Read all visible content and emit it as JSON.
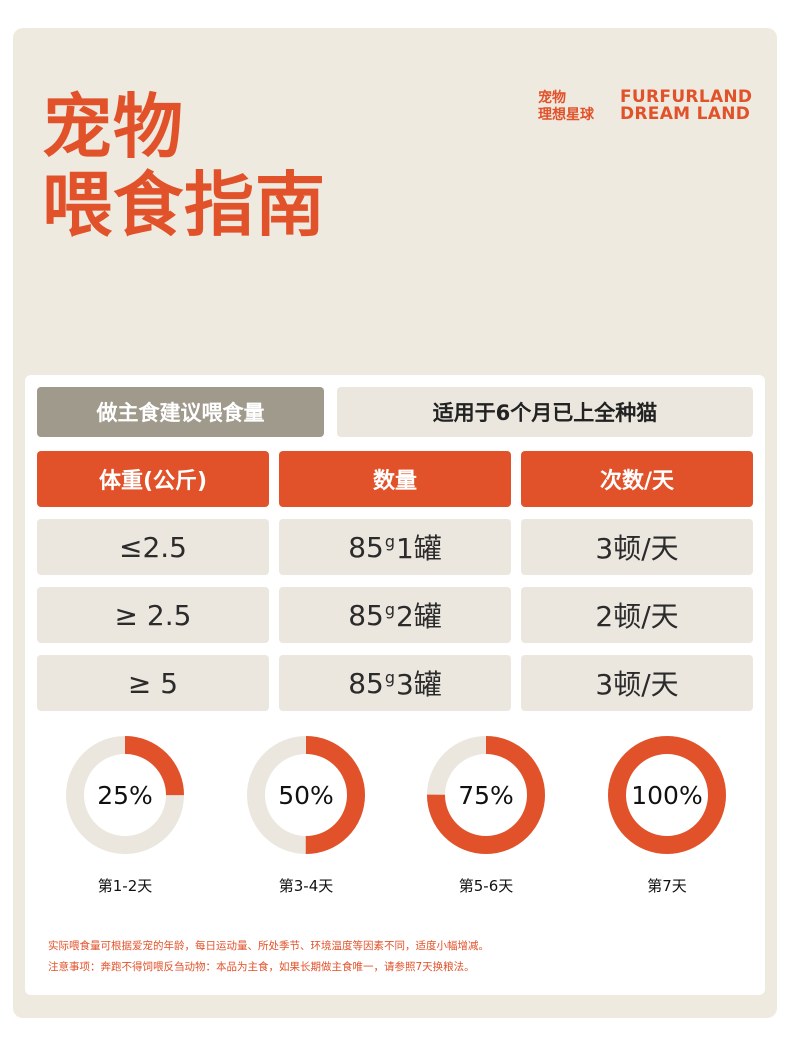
{
  "title": {
    "line1": "宠物",
    "line2": "喂食指南"
  },
  "brand": {
    "cn_line1": "宠物",
    "cn_line2": "理想星球",
    "en_line1": "FURFURLAND",
    "en_line2": "DREAM LAND"
  },
  "tags": {
    "left": "做主食建议喂食量",
    "right": "适用于6个月已上全种猫"
  },
  "table": {
    "headers": [
      "体重(公斤)",
      "数量",
      "次数/天"
    ],
    "rows": [
      {
        "weight": "≤2.5",
        "amount_num": "85",
        "amount_unit": "g",
        "amount_count": "1罐",
        "times": "3顿/天"
      },
      {
        "weight": "≥ 2.5",
        "amount_num": "85",
        "amount_unit": "g",
        "amount_count": "2罐",
        "times": "2顿/天"
      },
      {
        "weight": "≥ 5",
        "amount_num": "85",
        "amount_unit": "g",
        "amount_count": "3罐",
        "times": "3顿/天"
      }
    ]
  },
  "rings": [
    {
      "percent": "25%",
      "value": 0.25,
      "label": "第1-2天"
    },
    {
      "percent": "50%",
      "value": 0.5,
      "label": "第3-4天"
    },
    {
      "percent": "75%",
      "value": 0.75,
      "label": "第5-6天"
    },
    {
      "percent": "100%",
      "value": 1.0,
      "label": "第7天"
    }
  ],
  "colors": {
    "accent": "#e2522a",
    "track": "#ebe7df",
    "card": "#efeae0"
  },
  "notes": {
    "line1": "实际喂食量可根据爱宠的年龄，每日运动量、所处季节、环境温度等因素不同，适度小幅增减。",
    "line2": "注意事项：奔跑不得饲喂反刍动物：本品为主食，如果长期做主食唯一，请参照7天换粮法。"
  }
}
